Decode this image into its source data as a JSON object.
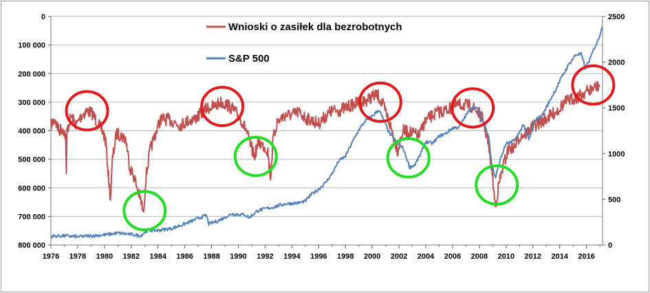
{
  "chart_data": {
    "type": "line",
    "title": "",
    "xlabel": "",
    "ylabel_left": "",
    "ylabel_right": "",
    "x_ticks": [
      "1976",
      "1978",
      "1980",
      "1982",
      "1984",
      "1986",
      "1988",
      "1990",
      "1992",
      "1994",
      "1996",
      "1998",
      "2000",
      "2002",
      "2004",
      "2006",
      "2008",
      "2010",
      "2012",
      "2014",
      "2016"
    ],
    "y_left_ticks": [
      "0",
      "100 000",
      "200 000",
      "300 000",
      "400 000",
      "500 000",
      "600 000",
      "700 000",
      "800 000"
    ],
    "y_right_ticks": [
      "0",
      "500",
      "1000",
      "1500",
      "2000",
      "2500"
    ],
    "xlim": [
      1976,
      2017.2
    ],
    "y_left_range": [
      0,
      800000
    ],
    "y_left_inverted": true,
    "y_right_range": [
      0,
      2500
    ],
    "grid": "horizontal",
    "legend_position": "top-center",
    "series": [
      {
        "name": "Wnioski o zasiłek dla bezrobotnych",
        "axis": "left",
        "color": "#c0504d",
        "points": [
          [
            1976.0,
            380000
          ],
          [
            1976.3,
            360000
          ],
          [
            1976.6,
            400000
          ],
          [
            1976.9,
            390000
          ],
          [
            1977.1,
            420000
          ],
          [
            1977.15,
            565000
          ],
          [
            1977.2,
            400000
          ],
          [
            1977.5,
            350000
          ],
          [
            1977.9,
            380000
          ],
          [
            1978.3,
            345000
          ],
          [
            1978.7,
            330000
          ],
          [
            1979.1,
            340000
          ],
          [
            1979.5,
            375000
          ],
          [
            1979.9,
            405000
          ],
          [
            1980.1,
            440000
          ],
          [
            1980.3,
            560000
          ],
          [
            1980.45,
            640000
          ],
          [
            1980.6,
            500000
          ],
          [
            1980.9,
            410000
          ],
          [
            1981.2,
            415000
          ],
          [
            1981.6,
            430000
          ],
          [
            1981.9,
            530000
          ],
          [
            1982.2,
            560000
          ],
          [
            1982.5,
            610000
          ],
          [
            1982.8,
            660000
          ],
          [
            1982.9,
            695000
          ],
          [
            1983.1,
            560000
          ],
          [
            1983.4,
            470000
          ],
          [
            1983.8,
            410000
          ],
          [
            1984.2,
            360000
          ],
          [
            1984.7,
            360000
          ],
          [
            1985.2,
            370000
          ],
          [
            1985.7,
            380000
          ],
          [
            1986.2,
            365000
          ],
          [
            1986.7,
            360000
          ],
          [
            1987.2,
            340000
          ],
          [
            1987.7,
            320000
          ],
          [
            1988.2,
            315000
          ],
          [
            1988.7,
            300000
          ],
          [
            1989.2,
            310000
          ],
          [
            1989.7,
            330000
          ],
          [
            1990.2,
            360000
          ],
          [
            1990.6,
            400000
          ],
          [
            1990.9,
            450000
          ],
          [
            1991.2,
            490000
          ],
          [
            1991.5,
            440000
          ],
          [
            1991.9,
            455000
          ],
          [
            1992.2,
            470000
          ],
          [
            1992.4,
            565000
          ],
          [
            1992.6,
            430000
          ],
          [
            1992.9,
            370000
          ],
          [
            1993.5,
            345000
          ],
          [
            1994.0,
            345000
          ],
          [
            1994.5,
            335000
          ],
          [
            1995.0,
            355000
          ],
          [
            1995.5,
            365000
          ],
          [
            1996.0,
            375000
          ],
          [
            1996.5,
            350000
          ],
          [
            1997.0,
            330000
          ],
          [
            1997.5,
            330000
          ],
          [
            1998.0,
            320000
          ],
          [
            1998.5,
            310000
          ],
          [
            1999.0,
            300000
          ],
          [
            1999.5,
            295000
          ],
          [
            2000.0,
            280000
          ],
          [
            2000.4,
            275000
          ],
          [
            2000.8,
            310000
          ],
          [
            2001.2,
            360000
          ],
          [
            2001.6,
            420000
          ],
          [
            2001.9,
            470000
          ],
          [
            2002.3,
            400000
          ],
          [
            2002.7,
            405000
          ],
          [
            2003.1,
            410000
          ],
          [
            2003.5,
            420000
          ],
          [
            2003.9,
            370000
          ],
          [
            2004.4,
            350000
          ],
          [
            2004.9,
            335000
          ],
          [
            2005.4,
            330000
          ],
          [
            2005.9,
            320000
          ],
          [
            2006.4,
            310000
          ],
          [
            2006.9,
            310000
          ],
          [
            2007.4,
            315000
          ],
          [
            2007.9,
            335000
          ],
          [
            2008.3,
            365000
          ],
          [
            2008.6,
            430000
          ],
          [
            2008.9,
            520000
          ],
          [
            2009.1,
            620000
          ],
          [
            2009.2,
            665000
          ],
          [
            2009.45,
            590000
          ],
          [
            2009.8,
            520000
          ],
          [
            2010.2,
            460000
          ],
          [
            2010.6,
            460000
          ],
          [
            2011.0,
            420000
          ],
          [
            2011.5,
            410000
          ],
          [
            2011.9,
            390000
          ],
          [
            2012.4,
            375000
          ],
          [
            2012.9,
            360000
          ],
          [
            2013.4,
            345000
          ],
          [
            2013.9,
            325000
          ],
          [
            2014.4,
            300000
          ],
          [
            2014.9,
            290000
          ],
          [
            2015.4,
            280000
          ],
          [
            2015.9,
            265000
          ],
          [
            2016.4,
            255000
          ],
          [
            2016.8,
            245000
          ],
          [
            2017.0,
            240000
          ]
        ]
      },
      {
        "name": "S&P 500",
        "axis": "right",
        "color": "#4f81bd",
        "points": [
          [
            1976.0,
            95
          ],
          [
            1977.0,
            100
          ],
          [
            1978.0,
            90
          ],
          [
            1979.0,
            100
          ],
          [
            1980.0,
            110
          ],
          [
            1981.0,
            130
          ],
          [
            1982.0,
            115
          ],
          [
            1982.7,
            100
          ],
          [
            1983.2,
            160
          ],
          [
            1984.0,
            160
          ],
          [
            1985.0,
            180
          ],
          [
            1986.0,
            230
          ],
          [
            1987.0,
            290
          ],
          [
            1987.6,
            325
          ],
          [
            1987.8,
            230
          ],
          [
            1988.5,
            265
          ],
          [
            1989.5,
            340
          ],
          [
            1990.5,
            330
          ],
          [
            1990.8,
            300
          ],
          [
            1991.5,
            380
          ],
          [
            1992.5,
            410
          ],
          [
            1993.5,
            450
          ],
          [
            1994.5,
            460
          ],
          [
            1995.0,
            480
          ],
          [
            1995.5,
            560
          ],
          [
            1996.0,
            610
          ],
          [
            1996.5,
            680
          ],
          [
            1997.0,
            780
          ],
          [
            1997.5,
            920
          ],
          [
            1998.0,
            970
          ],
          [
            1998.5,
            1120
          ],
          [
            1999.0,
            1260
          ],
          [
            1999.5,
            1360
          ],
          [
            2000.0,
            1410
          ],
          [
            2000.5,
            1480
          ],
          [
            2000.9,
            1350
          ],
          [
            2001.3,
            1220
          ],
          [
            2001.8,
            1120
          ],
          [
            2002.3,
            1060
          ],
          [
            2002.8,
            850
          ],
          [
            2003.2,
            880
          ],
          [
            2003.6,
            990
          ],
          [
            2004.0,
            1130
          ],
          [
            2004.5,
            1110
          ],
          [
            2005.0,
            1190
          ],
          [
            2005.5,
            1220
          ],
          [
            2006.0,
            1280
          ],
          [
            2006.5,
            1290
          ],
          [
            2007.0,
            1420
          ],
          [
            2007.5,
            1520
          ],
          [
            2007.9,
            1480
          ],
          [
            2008.3,
            1340
          ],
          [
            2008.7,
            1200
          ],
          [
            2008.9,
            900
          ],
          [
            2009.2,
            735
          ],
          [
            2009.6,
            950
          ],
          [
            2010.0,
            1110
          ],
          [
            2010.4,
            1120
          ],
          [
            2010.8,
            1180
          ],
          [
            2011.3,
            1320
          ],
          [
            2011.7,
            1150
          ],
          [
            2012.2,
            1370
          ],
          [
            2012.7,
            1420
          ],
          [
            2013.2,
            1560
          ],
          [
            2013.7,
            1700
          ],
          [
            2014.2,
            1850
          ],
          [
            2014.7,
            1980
          ],
          [
            2015.2,
            2080
          ],
          [
            2015.6,
            2090
          ],
          [
            2015.9,
            1940
          ],
          [
            2016.2,
            2010
          ],
          [
            2016.6,
            2160
          ],
          [
            2016.9,
            2250
          ],
          [
            2017.1,
            2360
          ],
          [
            2017.2,
            2380
          ]
        ]
      }
    ],
    "annotations": [
      {
        "shape": "circle",
        "color": "#e31a1c",
        "x": 1978.7,
        "y_left": 330000,
        "meaning": "peak"
      },
      {
        "shape": "circle",
        "color": "#e31a1c",
        "x": 1988.8,
        "y_left": 315000,
        "meaning": "peak"
      },
      {
        "shape": "circle",
        "color": "#e31a1c",
        "x": 2000.6,
        "y_left": 300000,
        "meaning": "peak"
      },
      {
        "shape": "circle",
        "color": "#e31a1c",
        "x": 2007.5,
        "y_left": 320000,
        "meaning": "peak"
      },
      {
        "shape": "circle",
        "color": "#e31a1c",
        "x": 2016.5,
        "y_left": 240000,
        "meaning": "peak"
      },
      {
        "shape": "circle",
        "color": "#22dd22",
        "x": 1983.0,
        "y_left": 680000,
        "meaning": "trough"
      },
      {
        "shape": "circle",
        "color": "#22dd22",
        "x": 1991.3,
        "y_left": 490000,
        "meaning": "trough"
      },
      {
        "shape": "circle",
        "color": "#22dd22",
        "x": 2002.7,
        "y_left": 495000,
        "meaning": "trough"
      },
      {
        "shape": "circle",
        "color": "#22dd22",
        "x": 2009.3,
        "y_left": 590000,
        "meaning": "trough"
      }
    ]
  }
}
